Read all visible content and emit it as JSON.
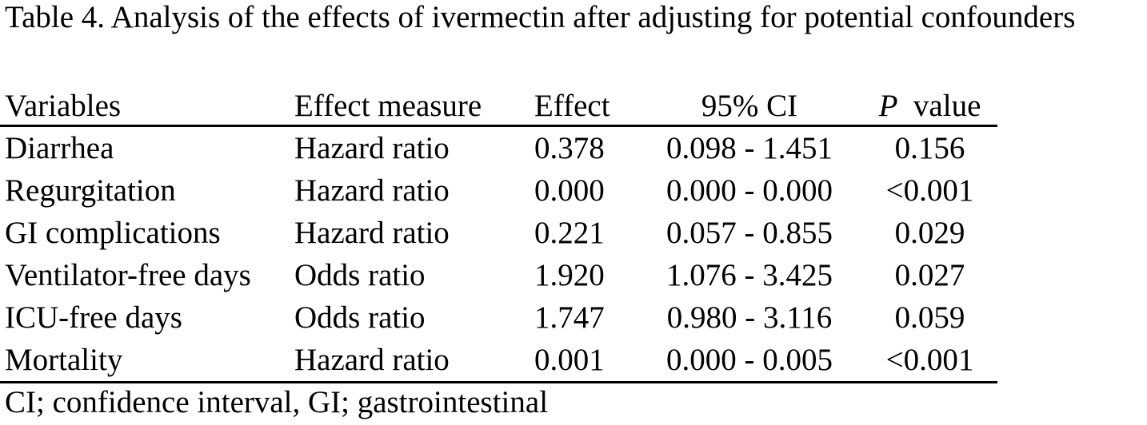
{
  "caption": "Table 4. Analysis of the effects of ivermectin after adjusting for potential confounders",
  "columns": {
    "variables": "Variables",
    "effect_measure": "Effect measure",
    "effect": "Effect",
    "ci": "95% CI",
    "p_symbol": "P",
    "p_label": "value"
  },
  "rows": [
    {
      "variable": "Diarrhea",
      "measure": "Hazard ratio",
      "effect": "0.378",
      "ci": "0.098 - 1.451",
      "p": "0.156"
    },
    {
      "variable": "Regurgitation",
      "measure": "Hazard ratio",
      "effect": "0.000",
      "ci": "0.000 - 0.000",
      "p": "<0.001"
    },
    {
      "variable": "GI complications",
      "measure": "Hazard ratio",
      "effect": "0.221",
      "ci": "0.057 - 0.855",
      "p": "0.029"
    },
    {
      "variable": "Ventilator-free days",
      "measure": "Odds ratio",
      "effect": "1.920",
      "ci": "1.076 - 3.425",
      "p": "0.027"
    },
    {
      "variable": "ICU-free days",
      "measure": "Odds ratio",
      "effect": "1.747",
      "ci": "0.980 - 3.116",
      "p": "0.059"
    },
    {
      "variable": "Mortality",
      "measure": "Hazard ratio",
      "effect": "0.001",
      "ci": "0.000 - 0.005",
      "p": "<0.001"
    }
  ],
  "footnote": "CI; confidence interval, GI; gastrointestinal"
}
